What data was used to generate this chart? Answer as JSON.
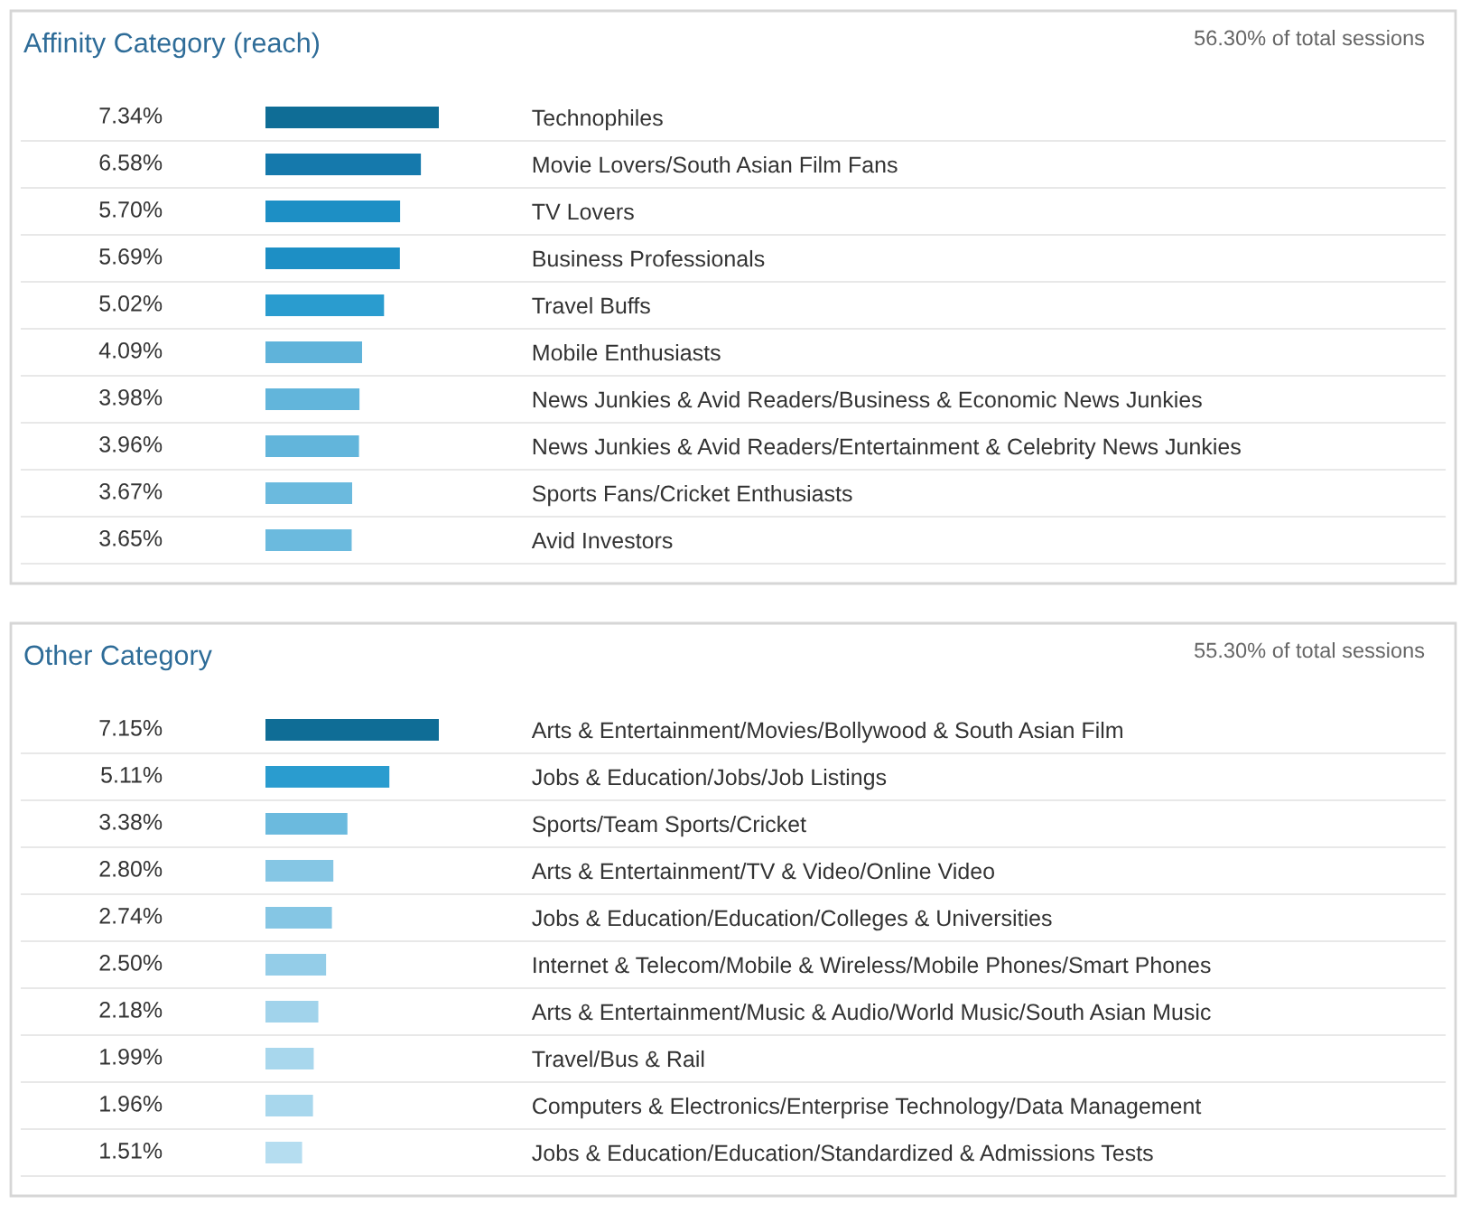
{
  "chart_data": [
    {
      "type": "bar",
      "orientation": "horizontal",
      "title": "Affinity Category (reach)",
      "subtitle": "56.30% of total sessions",
      "tick_labels": "y",
      "categories": [
        "Technophiles",
        "Movie Lovers/South Asian Film Fans",
        "TV Lovers",
        "Business Professionals",
        "Travel Buffs",
        "Mobile Enthusiasts",
        "News Junkies & Avid Readers/Business & Economic News Junkies",
        "News Junkies & Avid Readers/Entertainment & Celebrity News Junkies",
        "Sports Fans/Cricket Enthusiasts",
        "Avid Investors"
      ],
      "values": [
        7.34,
        6.58,
        5.7,
        5.69,
        5.02,
        4.09,
        3.98,
        3.96,
        3.67,
        3.65
      ],
      "value_labels": [
        "7.34%",
        "6.58%",
        "5.70%",
        "5.69%",
        "5.02%",
        "4.09%",
        "3.98%",
        "3.96%",
        "3.67%",
        "3.65%"
      ],
      "colors": [
        "#0f6d96",
        "#1579ac",
        "#1d8fc5",
        "#1d8fc5",
        "#2a9ccf",
        "#5fb3da",
        "#62b5db",
        "#62b5db",
        "#6bbade",
        "#6bbade"
      ]
    },
    {
      "type": "bar",
      "orientation": "horizontal",
      "title": "Other Category",
      "subtitle": "55.30% of total sessions",
      "tick_labels": "y",
      "categories": [
        "Arts & Entertainment/Movies/Bollywood & South Asian Film",
        "Jobs & Education/Jobs/Job Listings",
        "Sports/Team Sports/Cricket",
        "Arts & Entertainment/TV & Video/Online Video",
        "Jobs & Education/Education/Colleges & Universities",
        "Internet & Telecom/Mobile & Wireless/Mobile Phones/Smart Phones",
        "Arts & Entertainment/Music & Audio/World Music/South Asian Music",
        "Travel/Bus & Rail",
        "Computers & Electronics/Enterprise Technology/Data Management",
        "Jobs & Education/Education/Standardized & Admissions Tests"
      ],
      "values": [
        7.15,
        5.11,
        3.38,
        2.8,
        2.74,
        2.5,
        2.18,
        1.99,
        1.96,
        1.51
      ],
      "value_labels": [
        "7.15%",
        "5.11%",
        "3.38%",
        "2.80%",
        "2.74%",
        "2.50%",
        "2.18%",
        "1.99%",
        "1.96%",
        "1.51%"
      ],
      "colors": [
        "#0f6d96",
        "#2a9ccf",
        "#6bbade",
        "#85c6e4",
        "#85c6e4",
        "#94cde8",
        "#a1d3eb",
        "#a8d7ed",
        "#a8d7ed",
        "#b5ddf0"
      ]
    }
  ]
}
